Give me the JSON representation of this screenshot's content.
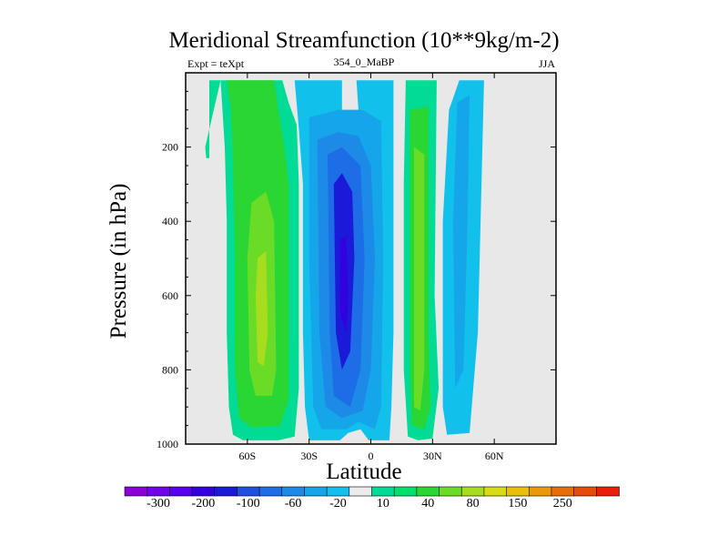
{
  "chart_data": {
    "type": "heatmap",
    "title": "Meridional Streamfunction (10**9kg/m-2)",
    "subtitle_left": "Expt = teXpt",
    "subtitle_center": "354_0_MaBP",
    "subtitle_right": "JJA",
    "xlabel": "Latitude",
    "ylabel": "Pressure (in hPa)",
    "xlim": [
      -90,
      90
    ],
    "ylim": [
      1000,
      0
    ],
    "x_ticks": [
      {
        "value": -60,
        "label": "60S"
      },
      {
        "value": -30,
        "label": "30S"
      },
      {
        "value": 0,
        "label": "0"
      },
      {
        "value": 30,
        "label": "30N"
      },
      {
        "value": 60,
        "label": "60N"
      }
    ],
    "y_ticks": [
      {
        "value": 200,
        "label": "200"
      },
      {
        "value": 400,
        "label": "400"
      },
      {
        "value": 600,
        "label": "600"
      },
      {
        "value": 800,
        "label": "800"
      },
      {
        "value": 1000,
        "label": "1000"
      }
    ],
    "background_color": "#e8e8e8",
    "colorbar": {
      "colors": [
        "#8a00d6",
        "#7200e8",
        "#5a00f0",
        "#3300e0",
        "#1a1ad8",
        "#1f4fe0",
        "#1d6ee6",
        "#1e8ae8",
        "#14a6e8",
        "#12c0ec",
        "#ececec",
        "#00dc95",
        "#00e06a",
        "#2ad633",
        "#6adb26",
        "#a8dc1e",
        "#d8dc14",
        "#e8c00a",
        "#e89a0a",
        "#e86e0a",
        "#e84a0a",
        "#e81e0a"
      ],
      "labels": [
        "-300",
        "-200",
        "-100",
        "-60",
        "-20",
        "10",
        "40",
        "80",
        "150",
        "250"
      ],
      "label_positions": [
        1,
        3,
        5,
        7,
        9,
        11,
        13,
        15,
        17,
        19
      ]
    },
    "contour_bands": [
      {
        "name": "sh-outer-cell",
        "color": "#00dc95",
        "value_range": "10 to 40",
        "outline": [
          [
            -80.5,
            20
          ],
          [
            -78.5,
            20
          ],
          [
            -78.5,
            230
          ],
          [
            -80,
            230
          ],
          [
            -80.5,
            200
          ],
          [
            -73,
            20
          ],
          [
            -43,
            20
          ],
          [
            -40,
            80
          ],
          [
            -36,
            140
          ],
          [
            -35,
            300
          ],
          [
            -35,
            850
          ],
          [
            -37,
            980
          ],
          [
            -45,
            990
          ],
          [
            -62,
            990
          ],
          [
            -67,
            975
          ],
          [
            -69,
            900
          ],
          [
            -70,
            700
          ],
          [
            -70,
            400
          ],
          [
            -71,
            200
          ],
          [
            -73,
            20
          ]
        ]
      },
      {
        "name": "sh-mid-cell",
        "color": "#2ad633",
        "value_range": "40 to 80",
        "outline": [
          [
            -70,
            20
          ],
          [
            -47,
            20
          ],
          [
            -45,
            100
          ],
          [
            -42,
            200
          ],
          [
            -40,
            300
          ],
          [
            -40,
            880
          ],
          [
            -44,
            950
          ],
          [
            -58,
            955
          ],
          [
            -64,
            930
          ],
          [
            -66,
            800
          ],
          [
            -66,
            500
          ],
          [
            -67,
            250
          ],
          [
            -68,
            100
          ],
          [
            -70,
            20
          ]
        ]
      },
      {
        "name": "sh-inner-cell",
        "color": "#6adb26",
        "value_range": "80 to 150",
        "outline": [
          [
            -58,
            350
          ],
          [
            -51,
            320
          ],
          [
            -47,
            400
          ],
          [
            -46,
            800
          ],
          [
            -48,
            870
          ],
          [
            -56,
            870
          ],
          [
            -59,
            800
          ],
          [
            -60,
            500
          ],
          [
            -58,
            350
          ]
        ]
      },
      {
        "name": "sh-core-cell",
        "color": "#a8dc1e",
        "value_range": "150 to 250",
        "outline": [
          [
            -55,
            500
          ],
          [
            -51,
            480
          ],
          [
            -50,
            700
          ],
          [
            -52,
            790
          ],
          [
            -55,
            780
          ],
          [
            -56,
            600
          ],
          [
            -55,
            500
          ]
        ]
      },
      {
        "name": "eq-outer-cell",
        "color": "#12c0ec",
        "value_range": "-20 to 10",
        "outline": [
          [
            -37,
            20
          ],
          [
            -14,
            20
          ],
          [
            -14,
            100
          ],
          [
            -6,
            100
          ],
          [
            -7,
            20
          ],
          [
            11,
            20
          ],
          [
            11,
            700
          ],
          [
            10,
            900
          ],
          [
            9,
            990
          ],
          [
            -1,
            990
          ],
          [
            -5,
            960
          ],
          [
            -11,
            970
          ],
          [
            -15,
            990
          ],
          [
            -30,
            990
          ],
          [
            -32,
            900
          ],
          [
            -33,
            700
          ],
          [
            -33,
            300
          ],
          [
            -35,
            150
          ],
          [
            -37,
            20
          ]
        ]
      },
      {
        "name": "eq-mid-cell",
        "color": "#14a6e8",
        "value_range": "-60 to -20",
        "outline": [
          [
            -30,
            120
          ],
          [
            -16,
            100
          ],
          [
            -4,
            100
          ],
          [
            5,
            130
          ],
          [
            6,
            500
          ],
          [
            5,
            900
          ],
          [
            2,
            960
          ],
          [
            -6,
            940
          ],
          [
            -12,
            960
          ],
          [
            -24,
            960
          ],
          [
            -28,
            900
          ],
          [
            -30,
            500
          ],
          [
            -30,
            120
          ]
        ]
      },
      {
        "name": "eq-inner-cell",
        "color": "#1e8ae8",
        "value_range": "-100 to -60",
        "outline": [
          [
            -26,
            180
          ],
          [
            -16,
            160
          ],
          [
            -6,
            170
          ],
          [
            0,
            250
          ],
          [
            2,
            500
          ],
          [
            0,
            800
          ],
          [
            -4,
            910
          ],
          [
            -14,
            930
          ],
          [
            -22,
            900
          ],
          [
            -25,
            700
          ],
          [
            -26,
            180
          ]
        ]
      },
      {
        "name": "eq-core-cell",
        "color": "#1d6ee6",
        "value_range": "-200 to -100",
        "outline": [
          [
            -21,
            220
          ],
          [
            -14,
            200
          ],
          [
            -5,
            250
          ],
          [
            -3,
            500
          ],
          [
            -5,
            800
          ],
          [
            -10,
            900
          ],
          [
            -18,
            870
          ],
          [
            -20,
            700
          ],
          [
            -21,
            220
          ]
        ]
      },
      {
        "name": "eq-deep-core",
        "color": "#1a1ad8",
        "value_range": "-300 to -200",
        "outline": [
          [
            -18,
            300
          ],
          [
            -14,
            270
          ],
          [
            -9,
            320
          ],
          [
            -8,
            500
          ],
          [
            -10,
            750
          ],
          [
            -14,
            800
          ],
          [
            -17,
            700
          ],
          [
            -18,
            300
          ]
        ]
      },
      {
        "name": "eq-center",
        "color": "#3300e0",
        "value_range": "< -300",
        "outline": [
          [
            -15,
            450
          ],
          [
            -12,
            440
          ],
          [
            -11,
            600
          ],
          [
            -12,
            700
          ],
          [
            -15,
            650
          ],
          [
            -15,
            450
          ]
        ]
      },
      {
        "name": "nh-outer-cell",
        "color": "#00dc95",
        "value_range": "10 to 40",
        "outline": [
          [
            17,
            20
          ],
          [
            32,
            20
          ],
          [
            31,
            600
          ],
          [
            33,
            850
          ],
          [
            30,
            985
          ],
          [
            23,
            990
          ],
          [
            18,
            980
          ],
          [
            16,
            800
          ],
          [
            16,
            300
          ],
          [
            17,
            20
          ]
        ]
      },
      {
        "name": "nh-mid-cell",
        "color": "#2ad633",
        "value_range": "40 to 80",
        "outline": [
          [
            19,
            100
          ],
          [
            28,
            90
          ],
          [
            28,
            700
          ],
          [
            29,
            900
          ],
          [
            26,
            960
          ],
          [
            20,
            950
          ],
          [
            19,
            800
          ],
          [
            19,
            100
          ]
        ]
      },
      {
        "name": "nh-inner-cell",
        "color": "#6adb26",
        "value_range": "80 to 150",
        "outline": [
          [
            21,
            200
          ],
          [
            26,
            220
          ],
          [
            26,
            800
          ],
          [
            24,
            910
          ],
          [
            21,
            900
          ],
          [
            21,
            200
          ]
        ]
      },
      {
        "name": "nh-far-cell",
        "color": "#12c0ec",
        "value_range": "-20 to 10",
        "outline": [
          [
            43,
            20
          ],
          [
            55,
            20
          ],
          [
            52,
            700
          ],
          [
            48,
            970
          ],
          [
            37,
            975
          ],
          [
            35,
            900
          ],
          [
            35,
            400
          ],
          [
            38,
            100
          ],
          [
            43,
            20
          ]
        ]
      },
      {
        "name": "nh-far-inner",
        "color": "#14a6e8",
        "value_range": "-60 to -20",
        "outline": [
          [
            42,
            80
          ],
          [
            48,
            60
          ],
          [
            47,
            400
          ],
          [
            45,
            800
          ],
          [
            41,
            850
          ],
          [
            40,
            400
          ],
          [
            42,
            80
          ]
        ]
      }
    ]
  }
}
